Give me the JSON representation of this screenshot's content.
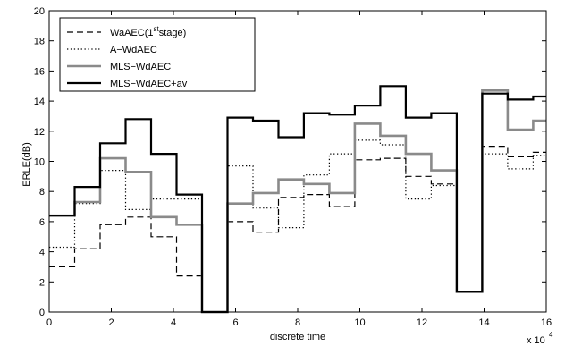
{
  "chart_data": {
    "type": "line",
    "xlabel": "discrete time",
    "ylabel": "ERLE(dB)",
    "x_multiplier_label": "x 10",
    "x_multiplier_exp": "4",
    "xlim": [
      0,
      16
    ],
    "ylim": [
      0,
      20
    ],
    "xticks": [
      0,
      2,
      4,
      6,
      8,
      10,
      12,
      14,
      16
    ],
    "yticks": [
      0,
      2,
      4,
      6,
      8,
      10,
      12,
      14,
      16,
      18,
      20
    ],
    "grid": false,
    "legend_position": "top-left",
    "legend": [
      {
        "main": "WaAEC(1",
        "sup": "st",
        "post": "stage)"
      },
      {
        "main": "A−WdAEC",
        "sup": "",
        "post": ""
      },
      {
        "main": "MLS−WdAEC",
        "sup": "",
        "post": ""
      },
      {
        "main": "MLS−WdAEC+av",
        "sup": "",
        "post": ""
      }
    ],
    "x_edges": [
      0,
      0.82,
      1.64,
      2.46,
      3.28,
      4.1,
      4.92,
      5.74,
      6.56,
      7.38,
      8.2,
      9.02,
      9.84,
      10.66,
      11.48,
      12.3,
      13.12,
      13.94,
      14.76,
      15.58,
      16.0
    ],
    "series": [
      {
        "style": "dashed",
        "color": "#000000",
        "width": 1.2,
        "values": [
          3.0,
          4.2,
          5.8,
          6.3,
          5.0,
          2.4,
          0,
          6.0,
          5.3,
          7.6,
          7.8,
          7.0,
          10.1,
          10.2,
          9.0,
          8.5,
          1.35,
          11.0,
          10.3,
          10.6
        ]
      },
      {
        "style": "dotted",
        "color": "#000000",
        "width": 1.2,
        "values": [
          4.3,
          7.2,
          9.4,
          6.8,
          7.5,
          7.5,
          0,
          9.7,
          6.9,
          5.6,
          9.1,
          10.5,
          11.4,
          11.1,
          7.5,
          8.4,
          1.35,
          10.5,
          9.5,
          10.4
        ]
      },
      {
        "style": "solid",
        "color": "#8a8a8a",
        "width": 2.6,
        "values": [
          6.4,
          7.3,
          10.2,
          9.3,
          6.3,
          5.8,
          0,
          7.2,
          7.9,
          8.8,
          8.5,
          7.9,
          12.5,
          11.7,
          10.5,
          9.4,
          1.35,
          14.7,
          12.1,
          12.7
        ]
      },
      {
        "style": "solid",
        "color": "#000000",
        "width": 2.2,
        "values": [
          6.4,
          8.3,
          11.2,
          12.8,
          10.5,
          7.8,
          0,
          12.9,
          12.7,
          11.6,
          13.2,
          13.1,
          13.7,
          15.0,
          12.9,
          13.2,
          1.35,
          14.5,
          14.1,
          14.3
        ]
      }
    ]
  }
}
